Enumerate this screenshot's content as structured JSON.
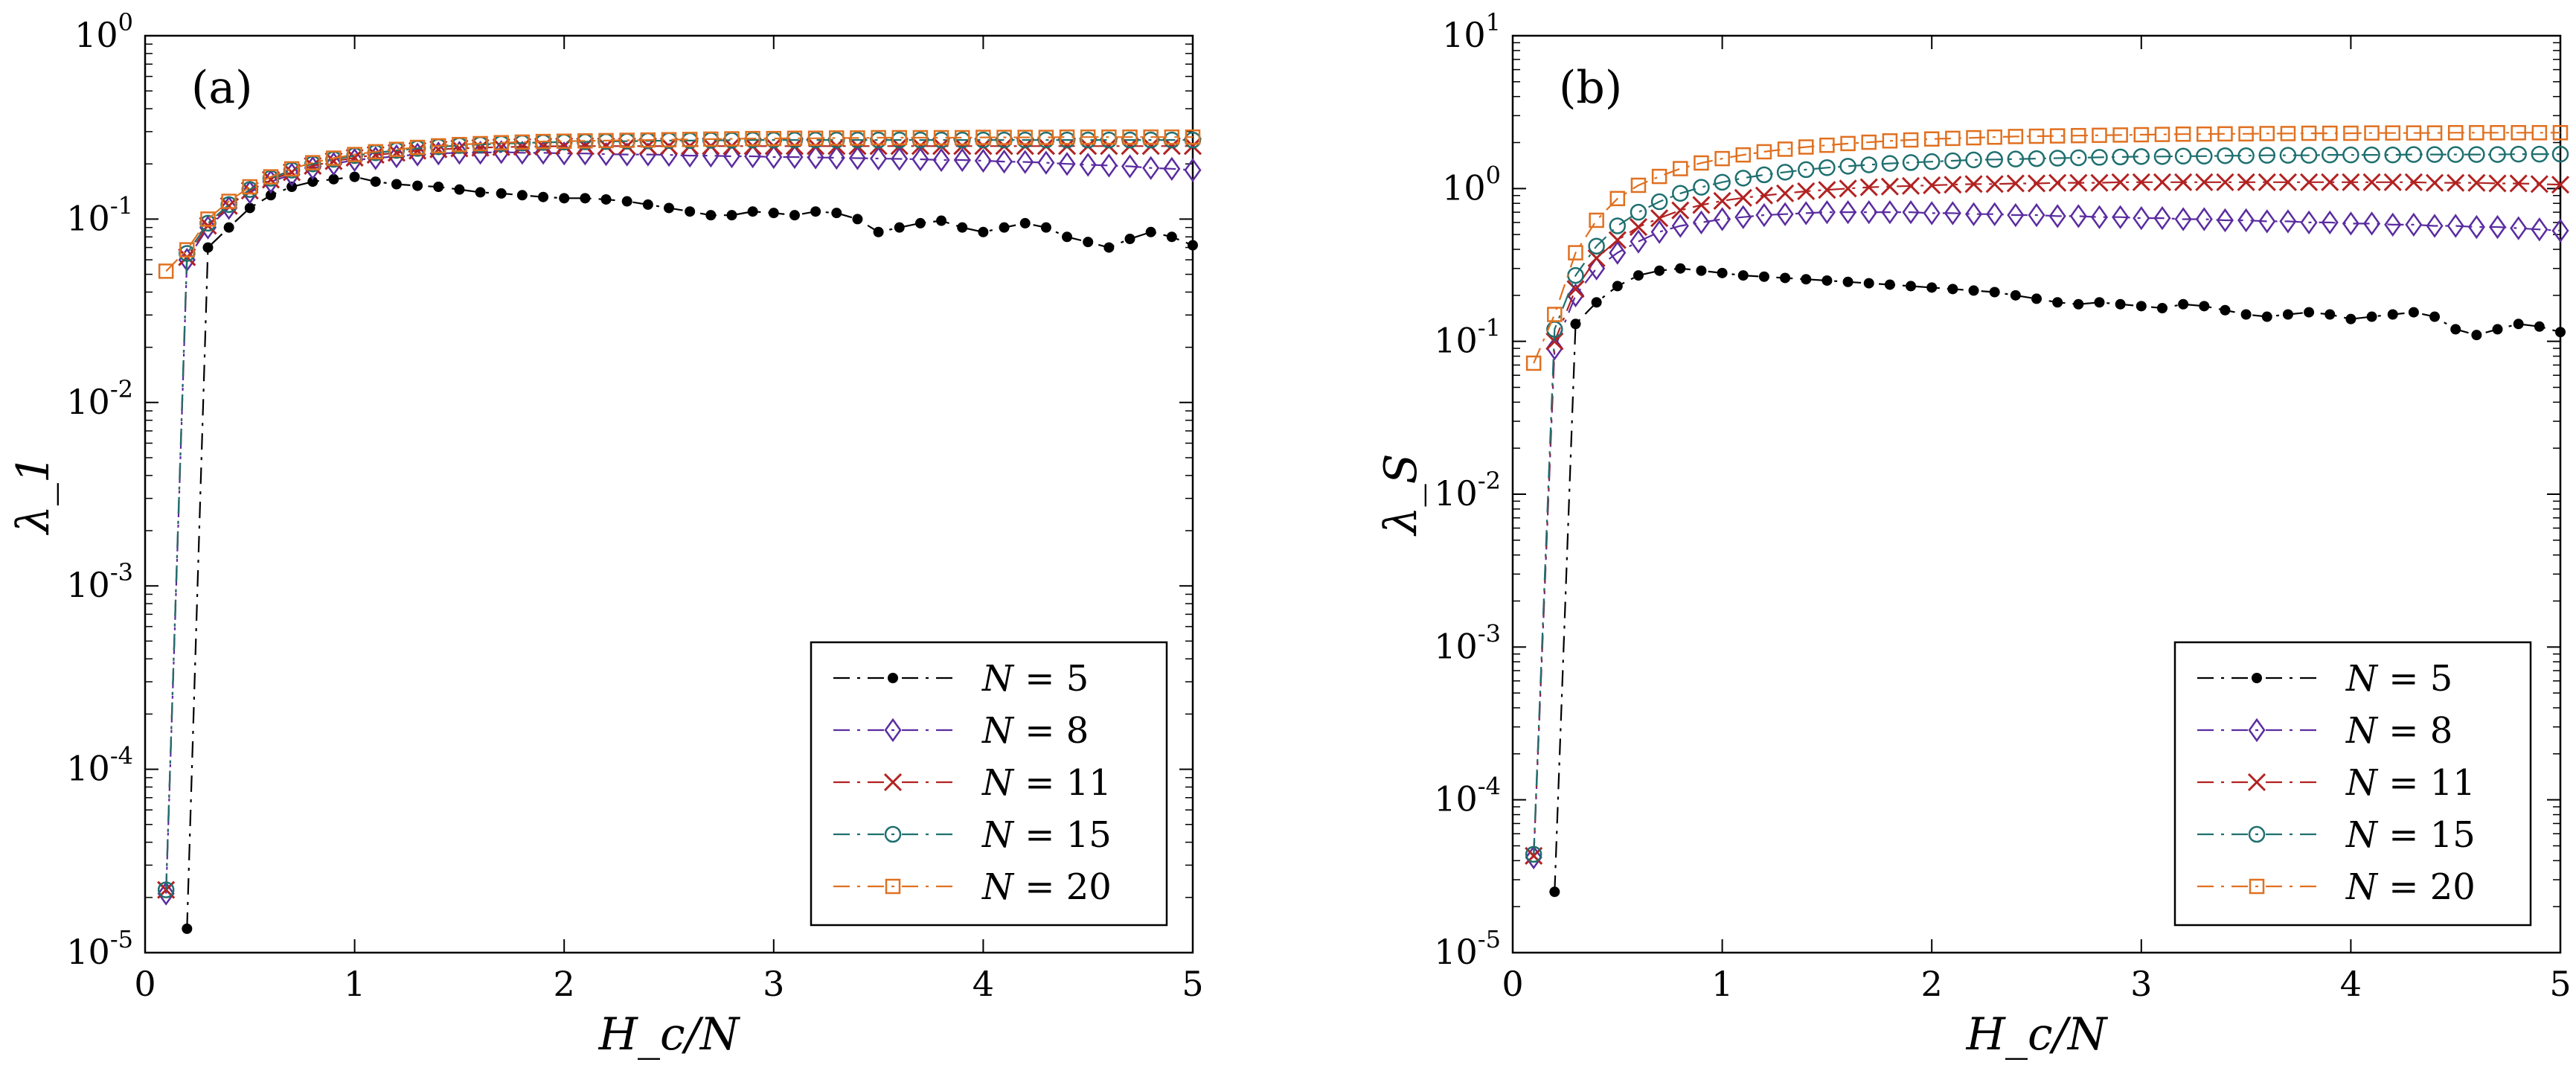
{
  "chart_data": [
    {
      "type": "line",
      "panel_label": "(a)",
      "xlabel": "H_c/N",
      "ylabel": "λ_1",
      "xlim": [
        0,
        5
      ],
      "ylim": [
        1e-05,
        1
      ],
      "yscale": "log",
      "x_ticks": [
        "0",
        "1",
        "2",
        "3",
        "4",
        "5"
      ],
      "y_ticks": [
        {
          "base": "10",
          "exp": "-5"
        },
        {
          "base": "10",
          "exp": "-4"
        },
        {
          "base": "10",
          "exp": "-3"
        },
        {
          "base": "10",
          "exp": "-2"
        },
        {
          "base": "10",
          "exp": "-1"
        },
        {
          "base": "10",
          "exp": "0"
        }
      ],
      "legend_position": "bottom-right",
      "series": [
        {
          "name": "N = 5",
          "label_left": "N",
          "label_right": "= 5",
          "color": "#000000",
          "marker": "dot",
          "x0": 0.2,
          "values": [
            1.35e-05,
            0.07,
            0.09,
            0.115,
            0.135,
            0.15,
            0.16,
            0.165,
            0.17,
            0.16,
            0.155,
            0.152,
            0.15,
            0.145,
            0.14,
            0.138,
            0.135,
            0.132,
            0.13,
            0.13,
            0.128,
            0.125,
            0.12,
            0.115,
            0.11,
            0.105,
            0.105,
            0.11,
            0.108,
            0.105,
            0.11,
            0.108,
            0.1,
            0.085,
            0.09,
            0.095,
            0.098,
            0.09,
            0.085,
            0.09,
            0.095,
            0.09,
            0.08,
            0.075,
            0.07,
            0.078,
            0.085,
            0.08,
            0.072
          ]
        },
        {
          "name": "N = 8",
          "label_left": "N",
          "label_right": "= 8",
          "color": "#5a2ca0",
          "marker": "diamond",
          "x0": 0.1,
          "values": [
            2.1e-05,
            0.06,
            0.09,
            0.115,
            0.14,
            0.16,
            0.175,
            0.19,
            0.2,
            0.21,
            0.215,
            0.22,
            0.225,
            0.228,
            0.23,
            0.23,
            0.232,
            0.23,
            0.23,
            0.228,
            0.228,
            0.226,
            0.225,
            0.225,
            0.224,
            0.222,
            0.222,
            0.22,
            0.22,
            0.218,
            0.218,
            0.217,
            0.216,
            0.215,
            0.214,
            0.213,
            0.212,
            0.21,
            0.21,
            0.208,
            0.206,
            0.205,
            0.203,
            0.2,
            0.198,
            0.196,
            0.194,
            0.19,
            0.188,
            0.185
          ]
        },
        {
          "name": "N = 11",
          "label_left": "N",
          "label_right": "= 11",
          "color": "#b22222",
          "marker": "x",
          "x0": 0.1,
          "values": [
            2.2e-05,
            0.062,
            0.092,
            0.118,
            0.143,
            0.164,
            0.18,
            0.195,
            0.207,
            0.216,
            0.224,
            0.23,
            0.236,
            0.24,
            0.243,
            0.245,
            0.247,
            0.248,
            0.249,
            0.25,
            0.25,
            0.25,
            0.25,
            0.25,
            0.25,
            0.25,
            0.25,
            0.25,
            0.25,
            0.25,
            0.25,
            0.25,
            0.25,
            0.25,
            0.25,
            0.25,
            0.25,
            0.25,
            0.25,
            0.25,
            0.25,
            0.25,
            0.25,
            0.25,
            0.25,
            0.25,
            0.25,
            0.25,
            0.25,
            0.25
          ]
        },
        {
          "name": "N = 15",
          "label_left": "N",
          "label_right": "= 15",
          "color": "#1f6f6f",
          "marker": "circle",
          "x0": 0.1,
          "values": [
            2.2e-05,
            0.065,
            0.095,
            0.12,
            0.145,
            0.167,
            0.185,
            0.2,
            0.212,
            0.222,
            0.23,
            0.237,
            0.243,
            0.248,
            0.252,
            0.255,
            0.258,
            0.26,
            0.262,
            0.263,
            0.264,
            0.265,
            0.266,
            0.267,
            0.268,
            0.268,
            0.269,
            0.269,
            0.27,
            0.27,
            0.27,
            0.27,
            0.27,
            0.27,
            0.27,
            0.27,
            0.27,
            0.27,
            0.27,
            0.27,
            0.27,
            0.27,
            0.27,
            0.27,
            0.27,
            0.27,
            0.27,
            0.27,
            0.27,
            0.27
          ]
        },
        {
          "name": "N = 20",
          "label_left": "N",
          "label_right": "= 20",
          "color": "#e07020",
          "marker": "square",
          "x0": 0.1,
          "values": [
            0.052,
            0.068,
            0.1,
            0.125,
            0.15,
            0.17,
            0.188,
            0.203,
            0.215,
            0.225,
            0.233,
            0.24,
            0.246,
            0.251,
            0.255,
            0.258,
            0.261,
            0.263,
            0.265,
            0.266,
            0.267,
            0.268,
            0.269,
            0.27,
            0.271,
            0.272,
            0.273,
            0.274,
            0.275,
            0.275,
            0.276,
            0.276,
            0.277,
            0.277,
            0.278,
            0.278,
            0.278,
            0.278,
            0.278,
            0.279,
            0.279,
            0.279,
            0.279,
            0.28,
            0.28,
            0.28,
            0.28,
            0.28,
            0.28,
            0.28
          ]
        }
      ]
    },
    {
      "type": "line",
      "panel_label": "(b)",
      "xlabel": "H_c/N",
      "ylabel": "λ_S",
      "xlim": [
        0,
        5
      ],
      "ylim": [
        1e-05,
        10
      ],
      "yscale": "log",
      "x_ticks": [
        "0",
        "1",
        "2",
        "3",
        "4",
        "5"
      ],
      "y_ticks": [
        {
          "base": "10",
          "exp": "-5"
        },
        {
          "base": "10",
          "exp": "-4"
        },
        {
          "base": "10",
          "exp": "-3"
        },
        {
          "base": "10",
          "exp": "-2"
        },
        {
          "base": "10",
          "exp": "-1"
        },
        {
          "base": "10",
          "exp": "0"
        },
        {
          "base": "10",
          "exp": "1"
        }
      ],
      "legend_position": "bottom-right",
      "series": [
        {
          "name": "N = 5",
          "label_left": "N",
          "label_right": "= 5",
          "color": "#000000",
          "marker": "dot",
          "x0": 0.2,
          "values": [
            2.5e-05,
            0.13,
            0.18,
            0.23,
            0.27,
            0.29,
            0.3,
            0.29,
            0.28,
            0.27,
            0.265,
            0.26,
            0.255,
            0.25,
            0.245,
            0.24,
            0.235,
            0.23,
            0.225,
            0.22,
            0.215,
            0.21,
            0.2,
            0.19,
            0.18,
            0.175,
            0.18,
            0.175,
            0.17,
            0.165,
            0.175,
            0.17,
            0.16,
            0.15,
            0.145,
            0.15,
            0.155,
            0.15,
            0.14,
            0.145,
            0.15,
            0.155,
            0.145,
            0.12,
            0.11,
            0.12,
            0.13,
            0.125,
            0.115
          ]
        },
        {
          "name": "N = 8",
          "label_left": "N",
          "label_right": "= 8",
          "color": "#5a2ca0",
          "marker": "diamond",
          "x0": 0.1,
          "values": [
            4.2e-05,
            0.09,
            0.2,
            0.3,
            0.38,
            0.45,
            0.52,
            0.57,
            0.6,
            0.63,
            0.65,
            0.67,
            0.68,
            0.69,
            0.7,
            0.7,
            0.7,
            0.7,
            0.7,
            0.69,
            0.69,
            0.68,
            0.68,
            0.67,
            0.67,
            0.66,
            0.66,
            0.65,
            0.65,
            0.64,
            0.64,
            0.63,
            0.63,
            0.62,
            0.62,
            0.61,
            0.61,
            0.6,
            0.6,
            0.59,
            0.59,
            0.58,
            0.58,
            0.57,
            0.57,
            0.56,
            0.56,
            0.55,
            0.54,
            0.53
          ]
        },
        {
          "name": "N = 11",
          "label_left": "N",
          "label_right": "= 11",
          "color": "#b22222",
          "marker": "x",
          "x0": 0.1,
          "values": [
            4.3e-05,
            0.1,
            0.22,
            0.35,
            0.46,
            0.56,
            0.64,
            0.72,
            0.78,
            0.83,
            0.87,
            0.9,
            0.93,
            0.96,
            0.98,
            1.0,
            1.02,
            1.03,
            1.04,
            1.05,
            1.06,
            1.07,
            1.07,
            1.08,
            1.08,
            1.09,
            1.09,
            1.09,
            1.1,
            1.1,
            1.1,
            1.1,
            1.1,
            1.1,
            1.1,
            1.1,
            1.1,
            1.1,
            1.1,
            1.1,
            1.1,
            1.1,
            1.1,
            1.09,
            1.09,
            1.09,
            1.08,
            1.08,
            1.07,
            1.06
          ]
        },
        {
          "name": "N = 15",
          "label_left": "N",
          "label_right": "= 15",
          "color": "#1f6f6f",
          "marker": "circle",
          "x0": 0.1,
          "values": [
            4.4e-05,
            0.12,
            0.27,
            0.42,
            0.57,
            0.7,
            0.82,
            0.93,
            1.02,
            1.1,
            1.17,
            1.23,
            1.28,
            1.33,
            1.37,
            1.4,
            1.43,
            1.46,
            1.48,
            1.5,
            1.52,
            1.54,
            1.55,
            1.56,
            1.57,
            1.58,
            1.59,
            1.6,
            1.61,
            1.62,
            1.62,
            1.63,
            1.63,
            1.64,
            1.64,
            1.65,
            1.65,
            1.65,
            1.66,
            1.66,
            1.66,
            1.66,
            1.67,
            1.67,
            1.67,
            1.67,
            1.67,
            1.68,
            1.68,
            1.68
          ]
        },
        {
          "name": "N = 20",
          "label_left": "N",
          "label_right": "= 20",
          "color": "#e07020",
          "marker": "square",
          "x0": 0.1,
          "values": [
            0.072,
            0.15,
            0.38,
            0.62,
            0.86,
            1.05,
            1.2,
            1.35,
            1.47,
            1.57,
            1.66,
            1.74,
            1.81,
            1.87,
            1.92,
            1.97,
            2.01,
            2.05,
            2.08,
            2.11,
            2.13,
            2.15,
            2.17,
            2.19,
            2.2,
            2.21,
            2.22,
            2.23,
            2.24,
            2.25,
            2.26,
            2.27,
            2.27,
            2.28,
            2.28,
            2.29,
            2.29,
            2.3,
            2.3,
            2.3,
            2.31,
            2.31,
            2.31,
            2.31,
            2.32,
            2.32,
            2.32,
            2.32,
            2.32,
            2.32
          ]
        }
      ]
    }
  ]
}
